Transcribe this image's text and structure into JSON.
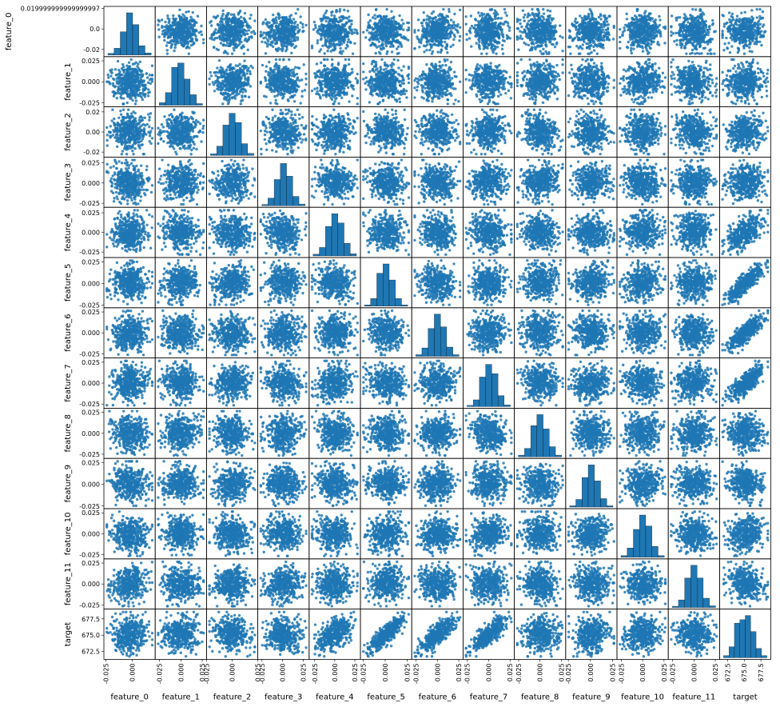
{
  "chart_data": {
    "type": "scatter",
    "variables": [
      "feature_0",
      "feature_1",
      "feature_2",
      "feature_3",
      "feature_4",
      "feature_5",
      "feature_6",
      "feature_7",
      "feature_8",
      "feature_9",
      "feature_10",
      "feature_11",
      "target"
    ],
    "color": "#1f77b4",
    "ranges": {
      "feature_0": [
        -0.027,
        0.022
      ],
      "feature_1": [
        -0.03,
        0.03
      ],
      "feature_2": [
        -0.025,
        0.025
      ],
      "feature_3": [
        -0.03,
        0.032
      ],
      "feature_4": [
        -0.032,
        0.032
      ],
      "feature_5": [
        -0.028,
        0.03
      ],
      "feature_6": [
        -0.03,
        0.03
      ],
      "feature_7": [
        -0.03,
        0.03
      ],
      "feature_8": [
        -0.03,
        0.03
      ],
      "feature_9": [
        -0.028,
        0.03
      ],
      "feature_10": [
        -0.03,
        0.03
      ],
      "feature_11": [
        -0.03,
        0.03
      ],
      "target": [
        671.3,
        679.0
      ]
    },
    "y_tick_labels": {
      "feature_0": [
        [
          "0.019999999999999997",
          0.02
        ],
        [
          "0.0",
          0.0
        ],
        [
          "-0.02",
          -0.02
        ]
      ],
      "feature_1": [
        [
          "0.025",
          0.025
        ],
        [
          "0.000",
          0.0
        ],
        [
          "-0.025",
          -0.025
        ]
      ],
      "feature_2": [
        [
          "0.02",
          0.02
        ],
        [
          "0.00",
          0.0
        ],
        [
          "-0.02",
          -0.02
        ]
      ],
      "feature_3": [
        [
          "0.025",
          0.025
        ],
        [
          "0.000",
          0.0
        ],
        [
          "-0.025",
          -0.025
        ]
      ],
      "feature_4": [
        [
          "0.025",
          0.025
        ],
        [
          "0.000",
          0.0
        ],
        [
          "-0.025",
          -0.025
        ]
      ],
      "feature_5": [
        [
          "0.025",
          0.025
        ],
        [
          "0.000",
          0.0
        ],
        [
          "-0.025",
          -0.025
        ]
      ],
      "feature_6": [
        [
          "0.025",
          0.025
        ],
        [
          "0.000",
          0.0
        ],
        [
          "-0.025",
          -0.025
        ]
      ],
      "feature_7": [
        [
          "0.025",
          0.025
        ],
        [
          "0.000",
          0.0
        ],
        [
          "-0.025",
          -0.025
        ]
      ],
      "feature_8": [
        [
          "0.025",
          0.025
        ],
        [
          "0.000",
          0.0
        ],
        [
          "-0.025",
          -0.025
        ]
      ],
      "feature_9": [
        [
          "0.025",
          0.025
        ],
        [
          "0.000",
          0.0
        ],
        [
          "-0.025",
          -0.025
        ]
      ],
      "feature_10": [
        [
          "0.025",
          0.025
        ],
        [
          "0.000",
          0.0
        ],
        [
          "-0.025",
          -0.025
        ]
      ],
      "feature_11": [
        [
          "0.025",
          0.025
        ],
        [
          "0.000",
          0.0
        ],
        [
          "-0.025",
          -0.025
        ]
      ],
      "target": [
        [
          "677.5",
          677.5
        ],
        [
          "675.0",
          675.0
        ],
        [
          "672.5",
          672.5
        ]
      ]
    },
    "x_tick_labels": {
      "feature_0": [
        [
          "-0.025",
          -0.025
        ],
        [
          "0.000",
          0.0
        ]
      ],
      "feature_1": [
        [
          "-0.025",
          -0.025
        ],
        [
          "0.000",
          0.0
        ],
        [
          "0.025",
          0.025
        ]
      ],
      "feature_2": [
        [
          "-0.025",
          -0.025
        ],
        [
          "0.000",
          0.0
        ],
        [
          "0.025",
          0.025
        ]
      ],
      "feature_3": [
        [
          "-0.025",
          -0.025
        ],
        [
          "0.000",
          0.0
        ],
        [
          "0.025",
          0.025
        ]
      ],
      "feature_4": [
        [
          "-0.025",
          -0.025
        ],
        [
          "0.000",
          0.0
        ],
        [
          "0.025",
          0.025
        ]
      ],
      "feature_5": [
        [
          "-0.025",
          -0.025
        ],
        [
          "0.000",
          0.0
        ],
        [
          "0.025",
          0.025
        ]
      ],
      "feature_6": [
        [
          "-0.025",
          -0.025
        ],
        [
          "0.000",
          0.0
        ],
        [
          "0.025",
          0.025
        ]
      ],
      "feature_7": [
        [
          "-0.025",
          -0.025
        ],
        [
          "0.000",
          0.0
        ],
        [
          "0.025",
          0.025
        ]
      ],
      "feature_8": [
        [
          "-0.025",
          -0.025
        ],
        [
          "0.000",
          0.0
        ],
        [
          "0.025",
          0.025
        ]
      ],
      "feature_9": [
        [
          "-0.025",
          -0.025
        ],
        [
          "0.000",
          0.0
        ],
        [
          "0.025",
          0.025
        ]
      ],
      "feature_10": [
        [
          "-0.025",
          -0.025
        ],
        [
          "0.000",
          0.0
        ],
        [
          "0.025",
          0.025
        ]
      ],
      "feature_11": [
        [
          "-0.025",
          -0.025
        ],
        [
          "0.000",
          0.0
        ],
        [
          "0.025",
          0.025
        ]
      ],
      "target": [
        [
          "672.5",
          672.5
        ],
        [
          "675.0",
          675.0
        ],
        [
          "677.5",
          677.5
        ]
      ]
    },
    "histograms": {
      "feature_0": [
        0.04,
        0.16,
        0.55,
        1.0,
        0.72,
        0.22,
        0.05
      ],
      "feature_1": [
        0.06,
        0.3,
        0.9,
        1.0,
        0.62,
        0.25,
        0.04
      ],
      "feature_2": [
        0.04,
        0.22,
        0.72,
        1.0,
        0.78,
        0.28,
        0.05
      ],
      "feature_3": [
        0.03,
        0.18,
        0.62,
        1.0,
        0.7,
        0.22,
        0.04
      ],
      "feature_4": [
        0.04,
        0.2,
        0.7,
        1.0,
        0.78,
        0.3,
        0.05
      ],
      "feature_5": [
        0.03,
        0.18,
        0.78,
        1.0,
        0.62,
        0.18,
        0.03
      ],
      "feature_6": [
        0.04,
        0.2,
        0.66,
        1.0,
        0.7,
        0.22,
        0.04
      ],
      "feature_7": [
        0.03,
        0.16,
        0.7,
        1.0,
        0.78,
        0.26,
        0.04
      ],
      "feature_8": [
        0.04,
        0.2,
        0.74,
        1.0,
        0.66,
        0.24,
        0.04
      ],
      "feature_9": [
        0.03,
        0.18,
        0.7,
        1.0,
        0.62,
        0.2,
        0.03
      ],
      "feature_10": [
        0.04,
        0.22,
        0.66,
        1.0,
        0.74,
        0.26,
        0.04
      ],
      "feature_11": [
        0.03,
        0.18,
        0.7,
        1.0,
        0.7,
        0.22,
        0.04
      ],
      "target": [
        0.05,
        0.26,
        0.82,
        0.9,
        1.0,
        0.62,
        0.22,
        0.05
      ]
    },
    "target_correlations": {
      "feature_4": 0.55,
      "feature_5": 0.85,
      "feature_6": 0.8,
      "feature_7": 0.8,
      "feature_10": 0.15
    },
    "points_per_panel": 420
  }
}
